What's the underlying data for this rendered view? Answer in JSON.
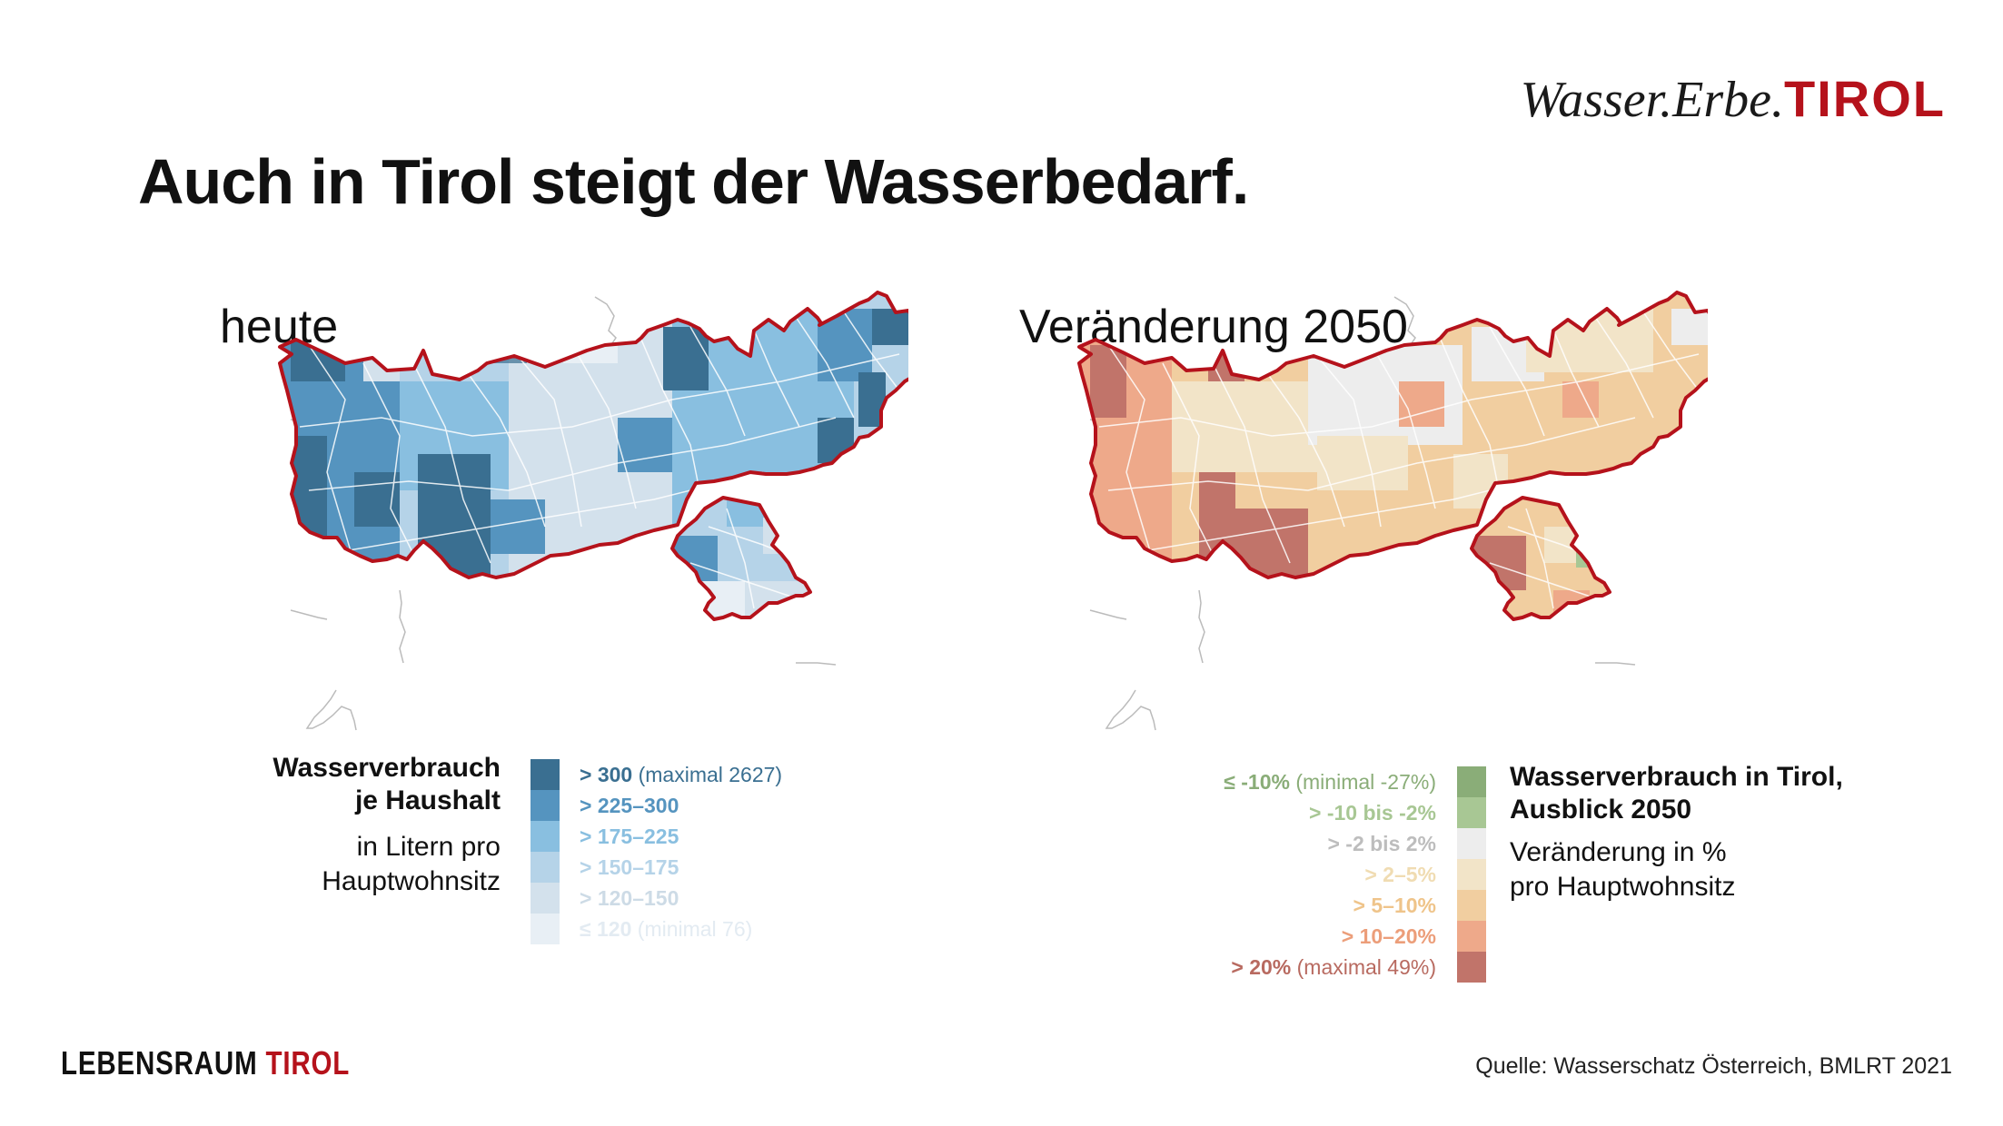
{
  "brand": {
    "part1": "Wasser.Erbe.",
    "part2": "TIROL"
  },
  "title": "Auch in Tirol steigt der Wasserbedarf.",
  "maps": {
    "today": {
      "heading": "heute"
    },
    "change": {
      "heading": "Veränderung 2050"
    }
  },
  "legend_today": {
    "title_line1": "Wasserverbrauch",
    "title_line2": "je Haushalt",
    "sub_line1": "in Litern pro",
    "sub_line2": "Hauptwohnsitz",
    "classes": [
      {
        "label": "> 300",
        "note": "(maximal 2627)",
        "color": "#3a6f91",
        "text_color": "#3a6f91"
      },
      {
        "label": "> 225–300",
        "note": "",
        "color": "#5594bf",
        "text_color": "#5594bf"
      },
      {
        "label": "> 175–225",
        "note": "",
        "color": "#89bfe0",
        "text_color": "#89bfe0"
      },
      {
        "label": "> 150–175",
        "note": "",
        "color": "#b5d3e8",
        "text_color": "#b5d3e8"
      },
      {
        "label": "> 120–150",
        "note": "",
        "color": "#d3e1ec",
        "text_color": "#cddbe6"
      },
      {
        "label": "≤ 120",
        "note": "(minimal 76)",
        "color": "#e8eff5",
        "text_color": "#e3ebf2"
      }
    ]
  },
  "legend_change": {
    "title_line1": "Wasserverbrauch in Tirol,",
    "title_line2": "Ausblick 2050",
    "sub_line1": "Veränderung in %",
    "sub_line2": "pro Hauptwohnsitz",
    "classes": [
      {
        "label": "≤ -10%",
        "note": "(minimal -27%)",
        "color": "#8aad78",
        "text_color": "#8aad78"
      },
      {
        "label": "> -10 bis -2%",
        "note": "",
        "color": "#a8c794",
        "text_color": "#a8c794"
      },
      {
        "label": "> -2 bis 2%",
        "note": "",
        "color": "#ededed",
        "text_color": "#bdbdbd"
      },
      {
        "label": "> 2–5%",
        "note": "",
        "color": "#f2e4c8",
        "text_color": "#f0dcb2"
      },
      {
        "label": "> 5–10%",
        "note": "",
        "color": "#f1cea0",
        "text_color": "#efc48a"
      },
      {
        "label": "> 10–20%",
        "note": "",
        "color": "#eea98a",
        "text_color": "#ec9e7a"
      },
      {
        "label": "> 20%",
        "note": "(maximal 49%)",
        "color": "#c1746a",
        "text_color": "#b86a60"
      }
    ]
  },
  "footer": {
    "logo_part1": "LEBENSRAUM ",
    "logo_part2": "TIROL"
  },
  "source": "Quelle: Wasserschatz Österreich, BMLRT 2021",
  "colors": {
    "border_red": "#b5121b",
    "neighbor_grey": "#bbbbbb"
  }
}
